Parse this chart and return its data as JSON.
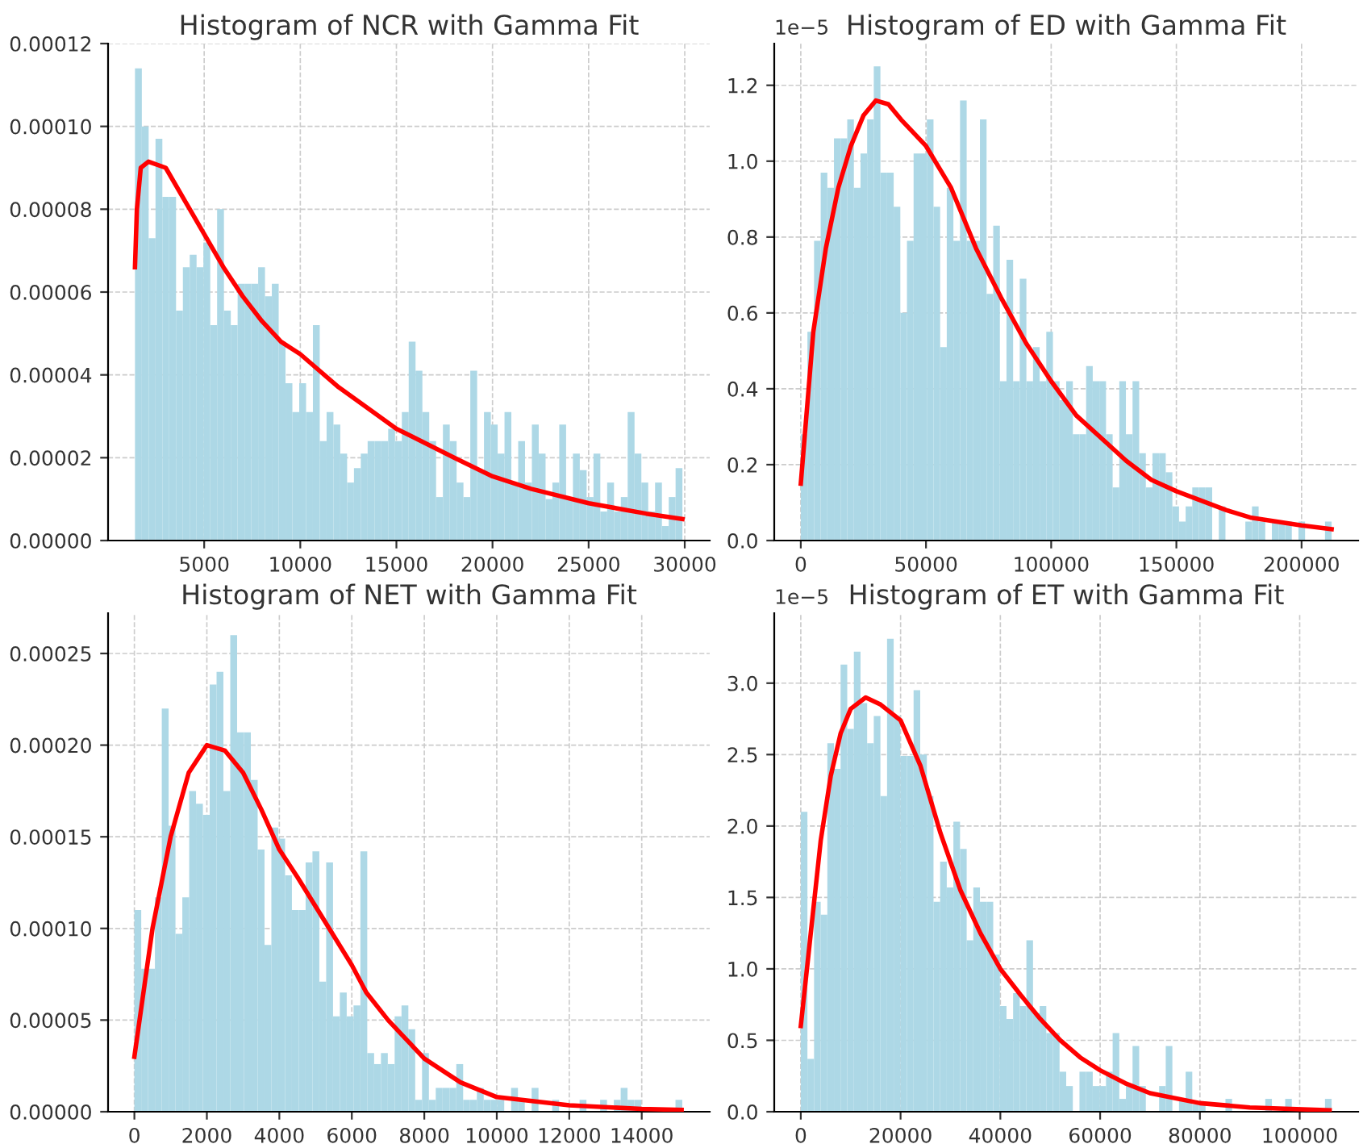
{
  "chart_data": [
    {
      "type": "histogram",
      "title": "Histogram of NCR with Gamma Fit",
      "color": "#add8e6",
      "grid": true,
      "bins": [
        1400,
        1756,
        2112,
        2468,
        2824,
        3180,
        3536,
        3892,
        4248,
        4604,
        4960,
        5316,
        5672,
        6028,
        6384,
        6740,
        7096,
        7452,
        7808,
        8164,
        8520,
        8876,
        9232,
        9588,
        9944,
        10300,
        10656,
        11012,
        11368,
        11724,
        12080,
        12436,
        12792,
        13148,
        13504,
        13860,
        14216,
        14572,
        14928,
        15284,
        15640,
        15996,
        16352,
        16708,
        17064,
        17420,
        17776,
        18132,
        18488,
        18844,
        19200,
        19556,
        19912,
        20268,
        20624,
        20980,
        21336,
        21692,
        22048,
        22404,
        22760,
        23116,
        23472,
        23828,
        24184,
        24540,
        24896,
        25252,
        25608,
        25964,
        26320,
        26676,
        27032,
        27388,
        27744,
        28100,
        28456,
        28812,
        29168,
        29524,
        29880
      ],
      "values": [
        0.000114,
        0.0001,
        7.3e-05,
        9.7e-05,
        8.3e-05,
        8.3e-05,
        5.55e-05,
        6.6e-05,
        6.9e-05,
        6.6e-05,
        7.2e-05,
        5.2e-05,
        8e-05,
        5.55e-05,
        5.2e-05,
        6.2e-05,
        6.2e-05,
        6.2e-05,
        6.6e-05,
        5.9e-05,
        6.2e-05,
        4.8e-05,
        3.8e-05,
        3.1e-05,
        3.8e-05,
        3.1e-05,
        5.2e-05,
        2.4e-05,
        3.1e-05,
        2.8e-05,
        2.1e-05,
        1.4e-05,
        1.75e-05,
        2.1e-05,
        2.4e-05,
        2.4e-05,
        2.4e-05,
        2.7e-05,
        2.4e-05,
        3.1e-05,
        4.8e-05,
        4.1e-05,
        3.1e-05,
        2.4e-05,
        1.05e-05,
        2.8e-05,
        2.4e-05,
        1.4e-05,
        1.05e-05,
        4.1e-05,
        1.7e-05,
        3.1e-05,
        2.8e-05,
        2.1e-05,
        3.1e-05,
        1.4e-05,
        2.4e-05,
        1.4e-05,
        2.8e-05,
        2.1e-05,
        1e-05,
        1.4e-05,
        2.8e-05,
        1e-05,
        2.1e-05,
        1.7e-05,
        1.05e-05,
        2.1e-05,
        7e-06,
        1.4e-05,
        7e-06,
        1.05e-05,
        3.1e-05,
        2.1e-05,
        1.4e-05,
        7e-06,
        1.4e-05,
        3.5e-06,
        1.05e-05,
        1.75e-05
      ],
      "series": [
        {
          "type": "line",
          "color": "#ff0000",
          "x": [
            1400,
            1500,
            1700,
            2100,
            3000,
            4000,
            5000,
            6000,
            7000,
            8000,
            9000,
            10000,
            12000,
            15000,
            18000,
            20000,
            22000,
            25000,
            28000,
            29880
          ],
          "values": [
            6.6e-05,
            8e-05,
            9e-05,
            9.15e-05,
            9e-05,
            8.2e-05,
            7.4e-05,
            6.6e-05,
            5.9e-05,
            5.3e-05,
            4.8e-05,
            4.5e-05,
            3.7e-05,
            2.7e-05,
            2e-05,
            1.55e-05,
            1.25e-05,
            9e-06,
            6.5e-06,
            5.2e-06
          ]
        }
      ],
      "xlim": [
        0,
        31300
      ],
      "xticks": [
        5000,
        10000,
        15000,
        20000,
        25000,
        30000
      ],
      "ylim": [
        0,
        0.00012
      ],
      "yticks": [
        {
          "value": 0,
          "label": "0.00000"
        },
        {
          "value": 2e-05,
          "label": "0.00002"
        },
        {
          "value": 4e-05,
          "label": "0.00004"
        },
        {
          "value": 6e-05,
          "label": "0.00006"
        },
        {
          "value": 8e-05,
          "label": "0.00008"
        },
        {
          "value": 0.0001,
          "label": "0.00010"
        },
        {
          "value": 0.00012,
          "label": "0.00012"
        }
      ]
    },
    {
      "type": "histogram",
      "title": "Histogram of ED with Gamma Fit",
      "color": "#add8e6",
      "grid": true,
      "annotations": [
        "1e−5"
      ],
      "bins": [
        0,
        2650,
        5300,
        7950,
        10600,
        13250,
        15900,
        18550,
        21200,
        23850,
        26500,
        29150,
        31800,
        34450,
        37100,
        39750,
        42400,
        45050,
        47700,
        50350,
        53000,
        55650,
        58300,
        60950,
        63600,
        66250,
        68900,
        71550,
        74200,
        76850,
        79500,
        82150,
        84800,
        87450,
        90100,
        92750,
        95400,
        98050,
        100700,
        103350,
        106000,
        108650,
        111300,
        113950,
        116600,
        119250,
        121900,
        124550,
        127200,
        129850,
        132500,
        135150,
        137800,
        140450,
        143100,
        145750,
        148400,
        151050,
        153700,
        156350,
        159000,
        161650,
        164300,
        166950,
        169600,
        172250,
        174900,
        177550,
        180200,
        182850,
        185500,
        188150,
        190800,
        193450,
        196100,
        198750,
        201400,
        204050,
        206700,
        209350,
        212000
      ],
      "values": [
        0.28,
        0.55,
        0.79,
        0.97,
        0.93,
        1.06,
        1.06,
        1.11,
        0.93,
        1.02,
        1.11,
        1.25,
        0.97,
        0.97,
        0.88,
        0.6,
        0.79,
        1.02,
        1.02,
        1.11,
        0.88,
        0.51,
        0.93,
        0.79,
        1.16,
        0.79,
        0.79,
        1.11,
        0.65,
        0.83,
        0.42,
        0.74,
        0.42,
        0.69,
        0.42,
        0.51,
        0.42,
        0.55,
        0.42,
        0.37,
        0.42,
        0.28,
        0.28,
        0.46,
        0.42,
        0.42,
        0.28,
        0.14,
        0.42,
        0.28,
        0.42,
        0.23,
        0.14,
        0.23,
        0.23,
        0.18,
        0.09,
        0.05,
        0.09,
        0.14,
        0.14,
        0.14,
        0,
        0.09,
        0,
        0,
        0,
        0.05,
        0.09,
        0.05,
        0,
        0.05,
        0.05,
        0.05,
        0,
        0.05,
        0,
        0,
        0,
        0.05
      ],
      "series": [
        {
          "type": "line",
          "color": "#ff0000",
          "x": [
            0,
            5000,
            10000,
            15000,
            20000,
            25000,
            30000,
            35000,
            40000,
            50000,
            60000,
            70000,
            80000,
            90000,
            100000,
            110000,
            120000,
            130000,
            140000,
            150000,
            170000,
            180000,
            190000,
            200000,
            212000
          ],
          "values": [
            0.15,
            0.55,
            0.77,
            0.93,
            1.04,
            1.12,
            1.16,
            1.15,
            1.11,
            1.04,
            0.93,
            0.77,
            0.64,
            0.52,
            0.42,
            0.33,
            0.27,
            0.21,
            0.16,
            0.13,
            0.08,
            0.06,
            0.05,
            0.04,
            0.03
          ]
        }
      ],
      "xlim": [
        -10600,
        222600
      ],
      "xticks": [
        0,
        50000,
        100000,
        150000,
        200000
      ],
      "ylim": [
        0,
        1.31
      ],
      "yticks": [
        {
          "value": 0,
          "label": "0.0"
        },
        {
          "value": 0.2,
          "label": "0.2"
        },
        {
          "value": 0.4,
          "label": "0.4"
        },
        {
          "value": 0.6,
          "label": "0.6"
        },
        {
          "value": 0.8,
          "label": "0.8"
        },
        {
          "value": 1,
          "label": "1.0"
        },
        {
          "value": 1.2,
          "label": "1.2"
        }
      ]
    },
    {
      "type": "histogram",
      "title": "Histogram of NET with Gamma Fit",
      "color": "#add8e6",
      "grid": true,
      "bins": [
        0,
        189,
        378,
        567,
        756,
        945,
        1134,
        1323,
        1512,
        1701,
        1890,
        2079,
        2268,
        2457,
        2646,
        2835,
        3024,
        3213,
        3402,
        3591,
        3780,
        3969,
        4158,
        4347,
        4536,
        4725,
        4914,
        5103,
        5292,
        5481,
        5670,
        5859,
        6048,
        6237,
        6426,
        6615,
        6804,
        6993,
        7182,
        7371,
        7560,
        7749,
        7938,
        8127,
        8316,
        8505,
        8694,
        8883,
        9072,
        9261,
        9450,
        9639,
        9828,
        10017,
        10206,
        10395,
        10584,
        10773,
        10962,
        11151,
        11340,
        11529,
        11718,
        11907,
        12096,
        12285,
        12474,
        12663,
        12852,
        13041,
        13230,
        13419,
        13608,
        13797,
        13986,
        14175,
        14364,
        14553,
        14742,
        14931,
        15120
      ],
      "values": [
        0.00011,
        7.8e-05,
        7.8e-05,
        0.000117,
        0.00022,
        0.000156,
        9.7e-05,
        0.000117,
        0.000175,
        0.000168,
        0.000162,
        0.000233,
        0.00024,
        0.000175,
        0.00026,
        0.000207,
        0.000207,
        0.000181,
        0.000143,
        9.1e-05,
        0.000155,
        0.000149,
        0.000129,
        0.00011,
        0.00011,
        0.000136,
        0.000142,
        7.1e-05,
        0.000136,
        5.2e-05,
        6.5e-05,
        5.2e-05,
        5.8e-05,
        0.000142,
        3.2e-05,
        2.6e-05,
        3.2e-05,
        2.6e-05,
        5.2e-05,
        5.8e-05,
        4.5e-05,
        6.5e-06,
        3.2e-05,
        6.5e-06,
        1.3e-05,
        1.3e-05,
        1.3e-05,
        2.6e-05,
        6.5e-06,
        6.5e-06,
        1.3e-05,
        6.5e-06,
        6.5e-06,
        6.5e-06,
        0,
        1.3e-05,
        6.5e-06,
        0,
        1.3e-05,
        0,
        0,
        6.5e-06,
        0,
        0,
        0,
        6.5e-06,
        0,
        0,
        6.5e-06,
        0,
        6.5e-06,
        1.3e-05,
        6.5e-06,
        6.5e-06,
        0,
        0,
        0,
        0,
        0,
        6.5e-06
      ],
      "series": [
        {
          "type": "line",
          "color": "#ff0000",
          "x": [
            0,
            500,
            1000,
            1500,
            2000,
            2500,
            3000,
            3500,
            4000,
            4500,
            5000,
            6000,
            6400,
            7000,
            8000,
            9000,
            10000,
            12000,
            14000,
            15100
          ],
          "values": [
            3e-05,
            0.0001,
            0.00015,
            0.000185,
            0.0002,
            0.000197,
            0.000185,
            0.000165,
            0.000143,
            0.000128,
            0.000112,
            8e-05,
            6.5e-05,
            5e-05,
            2.9e-05,
            1.6e-05,
            8e-06,
            3.5e-06,
            1.5e-06,
            1e-06
          ]
        }
      ],
      "xlim": [
        -726,
        15876
      ],
      "xticks": [
        0,
        2000,
        4000,
        6000,
        8000,
        10000,
        12000,
        14000
      ],
      "ylim": [
        0,
        0.000272
      ],
      "yticks": [
        {
          "value": 0,
          "label": "0.00000"
        },
        {
          "value": 5e-05,
          "label": "0.00005"
        },
        {
          "value": 0.0001,
          "label": "0.00010"
        },
        {
          "value": 0.00015,
          "label": "0.00015"
        },
        {
          "value": 0.0002,
          "label": "0.00020"
        },
        {
          "value": 0.00025,
          "label": "0.00025"
        }
      ]
    },
    {
      "type": "histogram",
      "title": "Histogram of ET with Gamma Fit",
      "color": "#add8e6",
      "grid": true,
      "annotations": [
        "1e−5"
      ],
      "bins": [
        0,
        1330,
        2660,
        3990,
        5320,
        6650,
        7980,
        9310,
        10640,
        11970,
        13300,
        14630,
        15960,
        17290,
        18620,
        19950,
        21280,
        22610,
        23940,
        25270,
        26600,
        27930,
        29260,
        30590,
        31920,
        33250,
        34580,
        35910,
        37240,
        38570,
        39900,
        41230,
        42560,
        43890,
        45220,
        46550,
        47880,
        49210,
        50540,
        51870,
        53200,
        54530,
        55860,
        57190,
        58520,
        59850,
        61180,
        62510,
        63840,
        65170,
        66500,
        67830,
        69160,
        70490,
        71820,
        73150,
        74480,
        75810,
        77140,
        78470,
        79800,
        81130,
        82460,
        83790,
        85120,
        86450,
        87780,
        89110,
        90440,
        91770,
        93100,
        94430,
        95760,
        97090,
        98420,
        99750,
        101080,
        102410,
        103740,
        105070,
        106400
      ],
      "values": [
        2.1,
        0.37,
        1.47,
        1.38,
        2.58,
        2.4,
        3.13,
        2.68,
        3.22,
        2.86,
        2.58,
        2.77,
        2.21,
        3.31,
        2.77,
        2.49,
        2.49,
        2.95,
        2.5,
        2.21,
        1.47,
        1.75,
        1.57,
        2.03,
        1.84,
        1.2,
        1.57,
        1.47,
        1.47,
        1.1,
        0.74,
        0.65,
        0.83,
        0.74,
        1.2,
        0.69,
        0.74,
        0.55,
        0.55,
        0.28,
        0.18,
        0,
        0.28,
        0.28,
        0.18,
        0.18,
        0.28,
        0.55,
        0.09,
        0.18,
        0.46,
        0.18,
        0,
        0,
        0.18,
        0.46,
        0,
        0.09,
        0.28,
        0.05,
        0.05,
        0,
        0,
        0,
        0.09,
        0,
        0,
        0,
        0,
        0,
        0.09,
        0,
        0,
        0.09,
        0,
        0,
        0,
        0,
        0,
        0.09
      ],
      "series": [
        {
          "type": "line",
          "color": "#ff0000",
          "x": [
            0,
            2000,
            4000,
            6000,
            8000,
            10000,
            13000,
            16000,
            20000,
            24000,
            28000,
            32000,
            36000,
            40000,
            44000,
            48000,
            52000,
            56000,
            60000,
            65000,
            70000,
            80000,
            90000,
            106000
          ],
          "values": [
            0.6,
            1.25,
            1.9,
            2.35,
            2.65,
            2.82,
            2.9,
            2.85,
            2.74,
            2.42,
            1.95,
            1.55,
            1.25,
            1,
            0.82,
            0.65,
            0.5,
            0.38,
            0.29,
            0.2,
            0.13,
            0.06,
            0.03,
            0.01
          ]
        }
      ],
      "xlim": [
        -5320,
        111720
      ],
      "xticks": [
        0,
        20000,
        40000,
        60000,
        80000,
        100000
      ],
      "ylim": [
        0,
        3.49
      ],
      "yticks": [
        {
          "value": 0,
          "label": "0.0"
        },
        {
          "value": 0.5,
          "label": "0.5"
        },
        {
          "value": 1,
          "label": "1.0"
        },
        {
          "value": 1.5,
          "label": "1.5"
        },
        {
          "value": 2,
          "label": "2.0"
        },
        {
          "value": 2.5,
          "label": "2.5"
        },
        {
          "value": 3,
          "label": "3.0"
        }
      ]
    }
  ]
}
